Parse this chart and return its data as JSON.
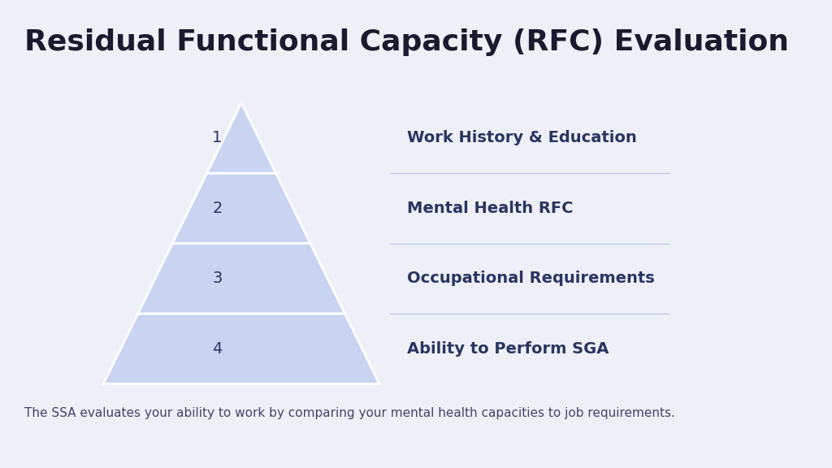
{
  "title": "Residual Functional Capacity (RFC) Evaluation",
  "title_fontsize": 26,
  "title_color": "#1a1a2e",
  "background_color": "#eef0f8",
  "pyramid_fill_color": "#c8d4f0",
  "pyramid_edge_color": "#ffffff",
  "pyramid_number_color": "#2a3560",
  "label_color": "#2a3560",
  "line_color": "#c0c8e0",
  "footnote": "The SSA evaluates your ability to work by comparing your mental health capacities to job requirements.",
  "footnote_color": "#444466",
  "layers": [
    {
      "number": "1",
      "label": "Work History & Education"
    },
    {
      "number": "2",
      "label": "Mental Health RFC"
    },
    {
      "number": "3",
      "label": "Occupational Requirements"
    },
    {
      "number": "4",
      "label": "Ability to Perform SGA"
    }
  ],
  "label_fontsize": 14,
  "number_fontsize": 14,
  "footnote_fontsize": 11
}
